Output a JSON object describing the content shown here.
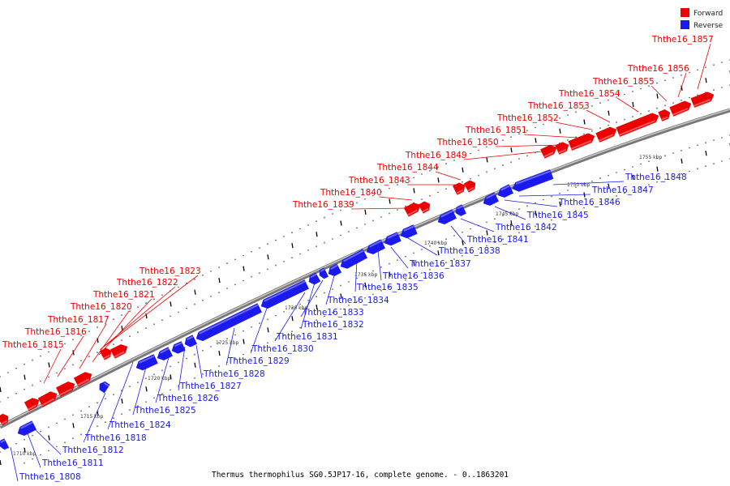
{
  "caption": "Thermus thermophilus SG0.5JP17-16, complete genome. - 0..1863201",
  "legend": [
    {
      "label": "Forward",
      "color": "#ee0000"
    },
    {
      "label": "Reverse",
      "color": "#1a1aee"
    }
  ],
  "colors": {
    "forward": "#ee0000",
    "reverse": "#1a1aee",
    "backbone": "#888888",
    "tick": "#000000"
  },
  "kbp_labels": [
    "1710 kbp",
    "1715 kbp",
    "1720 kbp",
    "1725 kbp",
    "1730 kbp",
    "1735 kbp",
    "1740 kbp",
    "1745 kbp",
    "1750 kbp",
    "1755 kbp"
  ],
  "forward_labels": [
    "Ththe16_1857",
    "Ththe16_1856",
    "Ththe16_1855",
    "Ththe16_1854",
    "Ththe16_1853",
    "Ththe16_1852",
    "Ththe16_1851",
    "Ththe16_1850",
    "Ththe16_1849",
    "Ththe16_1844",
    "Ththe16_1843",
    "Ththe16_1840",
    "Ththe16_1839",
    "Ththe16_1823",
    "Ththe16_1822",
    "Ththe16_1821",
    "Ththe16_1820",
    "Ththe16_1817",
    "Ththe16_1816",
    "Ththe16_1815"
  ],
  "reverse_labels": [
    "Ththe16_1848",
    "Ththe16_1847",
    "Ththe16_1846",
    "Ththe16_1845",
    "Ththe16_1842",
    "Ththe16_1841",
    "Ththe16_1838",
    "Ththe16_1837",
    "Ththe16_1836",
    "Ththe16_1835",
    "Ththe16_1834",
    "Ththe16_1833",
    "Ththe16_1832",
    "Ththe16_1831",
    "Ththe16_1830",
    "Ththe16_1829",
    "Ththe16_1828",
    "Ththe16_1827",
    "Ththe16_1826",
    "Ththe16_1825",
    "Ththe16_1824",
    "Ththe16_1818",
    "Ththe16_1812",
    "Ththe16_1811",
    "Ththe16_1808"
  ]
}
